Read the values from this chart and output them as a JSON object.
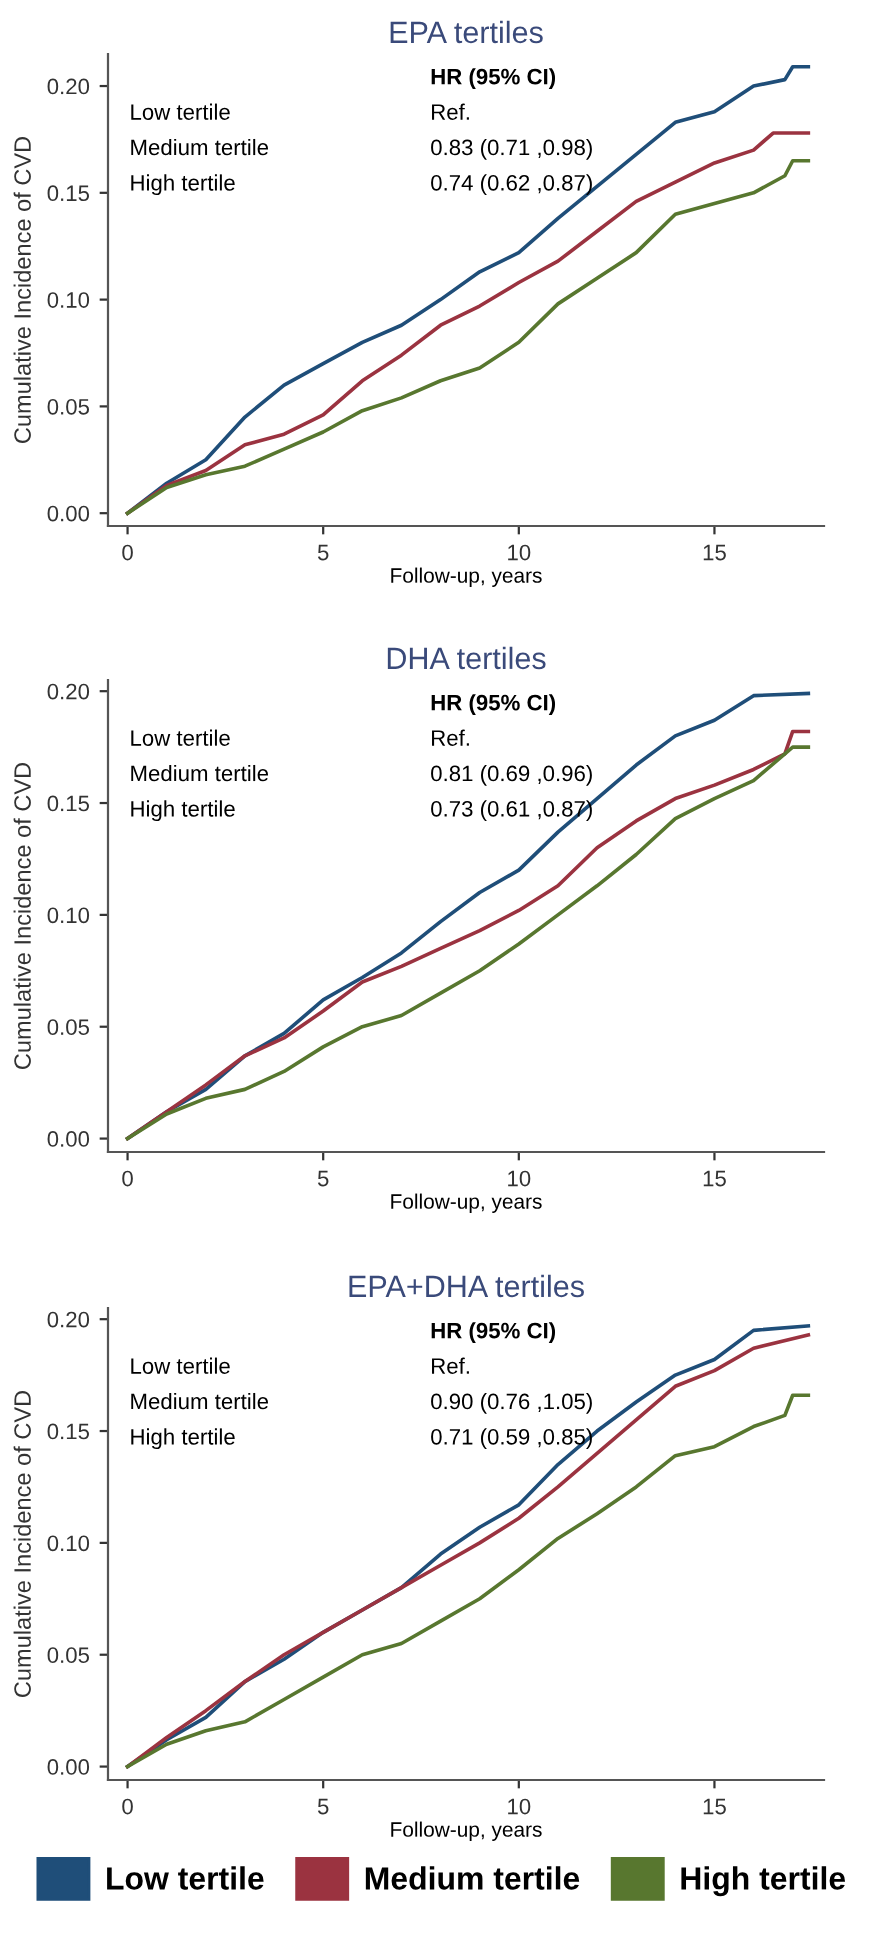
{
  "chart_data": [
    {
      "type": "line",
      "title": "EPA tertiles",
      "xlabel": "Follow-up, years",
      "ylabel": "Cumulative Incidence of CVD",
      "xlim": [
        -0.5,
        17.8
      ],
      "ylim": [
        -0.006,
        0.215
      ],
      "xticks": [
        0,
        5,
        10,
        15
      ],
      "yticks": [
        {
          "value": 0,
          "label": "0.00"
        },
        {
          "value": 0.05,
          "label": "0.05"
        },
        {
          "value": 0.1,
          "label": "0.10"
        },
        {
          "value": 0.15,
          "label": "0.15"
        },
        {
          "value": 0.2,
          "label": "0.20"
        }
      ],
      "grid": false,
      "legend": "bottom",
      "annotations": [
        "HR (95% CI)",
        "Low tertile",
        "Ref.",
        "Medium tertile",
        "0.83 (0.71 ,0.98)",
        "High tertile",
        "0.74 (0.62 ,0.87)"
      ],
      "series": [
        {
          "name": "Low tertile",
          "color": "#1f4e79",
          "x": [
            0,
            1,
            2,
            3,
            4,
            5,
            6,
            7,
            8,
            9,
            10,
            11,
            12,
            13,
            14,
            15,
            16,
            16.8,
            17,
            17.4
          ],
          "values": [
            0,
            0.014,
            0.025,
            0.045,
            0.06,
            0.07,
            0.08,
            0.088,
            0.1,
            0.113,
            0.122,
            0.138,
            0.153,
            0.168,
            0.183,
            0.188,
            0.2,
            0.203,
            0.209,
            0.209
          ]
        },
        {
          "name": "Medium tertile",
          "color": "#9b3340",
          "x": [
            0,
            1,
            2,
            3,
            4,
            5,
            6,
            7,
            8,
            9,
            10,
            11,
            12,
            13,
            14,
            15,
            16,
            16.5,
            17.4
          ],
          "values": [
            0,
            0.013,
            0.02,
            0.032,
            0.037,
            0.046,
            0.062,
            0.074,
            0.088,
            0.097,
            0.108,
            0.118,
            0.132,
            0.146,
            0.155,
            0.164,
            0.17,
            0.178,
            0.178
          ]
        },
        {
          "name": "High tertile",
          "color": "#58772f",
          "x": [
            0,
            1,
            2,
            3,
            4,
            5,
            6,
            7,
            8,
            9,
            10,
            11,
            12,
            13,
            14,
            15,
            16,
            16.8,
            17,
            17.4
          ],
          "values": [
            0,
            0.012,
            0.018,
            0.022,
            0.03,
            0.038,
            0.048,
            0.054,
            0.062,
            0.068,
            0.08,
            0.098,
            0.11,
            0.122,
            0.14,
            0.145,
            0.15,
            0.158,
            0.165,
            0.165
          ]
        }
      ]
    },
    {
      "type": "line",
      "title": "DHA tertiles",
      "xlabel": "Follow-up, years",
      "ylabel": "Cumulative Incidence of CVD",
      "xlim": [
        -0.5,
        17.8
      ],
      "ylim": [
        -0.006,
        0.205
      ],
      "xticks": [
        0,
        5,
        10,
        15
      ],
      "yticks": [
        {
          "value": 0,
          "label": "0.00"
        },
        {
          "value": 0.05,
          "label": "0.05"
        },
        {
          "value": 0.1,
          "label": "0.10"
        },
        {
          "value": 0.15,
          "label": "0.15"
        },
        {
          "value": 0.2,
          "label": "0.20"
        }
      ],
      "grid": false,
      "annotations": [
        "HR (95% CI)",
        "Low tertile",
        "Ref.",
        "Medium tertile",
        "0.81 (0.69 ,0.96)",
        "High tertile",
        "0.73 (0.61 ,0.87)"
      ],
      "series": [
        {
          "color": "#1f4e79",
          "x": [
            0,
            1,
            2,
            3,
            4,
            5,
            6,
            7,
            8,
            9,
            10,
            11,
            12,
            13,
            14,
            15,
            16,
            17.4
          ],
          "values": [
            0,
            0.012,
            0.022,
            0.037,
            0.047,
            0.062,
            0.072,
            0.083,
            0.097,
            0.11,
            0.12,
            0.137,
            0.152,
            0.167,
            0.18,
            0.187,
            0.198,
            0.199
          ]
        },
        {
          "color": "#9b3340",
          "x": [
            0,
            1,
            2,
            3,
            4,
            5,
            6,
            7,
            8,
            9,
            10,
            11,
            12,
            13,
            14,
            15,
            16,
            16.8,
            17,
            17.4
          ],
          "values": [
            0,
            0.012,
            0.024,
            0.037,
            0.045,
            0.057,
            0.07,
            0.077,
            0.085,
            0.093,
            0.102,
            0.113,
            0.13,
            0.142,
            0.152,
            0.158,
            0.165,
            0.172,
            0.182,
            0.182
          ]
        },
        {
          "color": "#58772f",
          "x": [
            0,
            1,
            2,
            3,
            4,
            5,
            6,
            7,
            8,
            9,
            10,
            11,
            12,
            13,
            14,
            15,
            16,
            17,
            17.4
          ],
          "values": [
            0,
            0.011,
            0.018,
            0.022,
            0.03,
            0.041,
            0.05,
            0.055,
            0.065,
            0.075,
            0.087,
            0.1,
            0.113,
            0.127,
            0.143,
            0.152,
            0.16,
            0.175,
            0.175
          ]
        }
      ]
    },
    {
      "type": "line",
      "title": "EPA+DHA tertiles",
      "xlabel": "Follow-up, years",
      "ylabel": "Cumulative Incidence of CVD",
      "xlim": [
        -0.5,
        17.8
      ],
      "ylim": [
        -0.006,
        0.205
      ],
      "xticks": [
        0,
        5,
        10,
        15
      ],
      "yticks": [
        {
          "value": 0,
          "label": "0.00"
        },
        {
          "value": 0.05,
          "label": "0.05"
        },
        {
          "value": 0.1,
          "label": "0.10"
        },
        {
          "value": 0.15,
          "label": "0.15"
        },
        {
          "value": 0.2,
          "label": "0.20"
        }
      ],
      "grid": false,
      "annotations": [
        "HR (95% CI)",
        "Low tertile",
        "Ref.",
        "Medium tertile",
        "0.90 (0.76 ,1.05)",
        "High tertile",
        "0.71 (0.59 ,0.85)"
      ],
      "series": [
        {
          "color": "#1f4e79",
          "x": [
            0,
            1,
            2,
            3,
            4,
            5,
            6,
            7,
            8,
            9,
            10,
            11,
            12,
            13,
            14,
            15,
            16,
            17.4
          ],
          "values": [
            0,
            0.012,
            0.022,
            0.038,
            0.048,
            0.06,
            0.07,
            0.08,
            0.095,
            0.107,
            0.117,
            0.135,
            0.15,
            0.163,
            0.175,
            0.182,
            0.195,
            0.197
          ]
        },
        {
          "color": "#9b3340",
          "x": [
            0,
            1,
            2,
            3,
            4,
            5,
            6,
            7,
            8,
            9,
            10,
            11,
            12,
            13,
            14,
            15,
            16,
            17.4
          ],
          "values": [
            0,
            0.013,
            0.025,
            0.038,
            0.05,
            0.06,
            0.07,
            0.08,
            0.09,
            0.1,
            0.111,
            0.125,
            0.14,
            0.155,
            0.17,
            0.177,
            0.187,
            0.193
          ]
        },
        {
          "color": "#58772f",
          "x": [
            0,
            1,
            2,
            3,
            4,
            5,
            6,
            7,
            8,
            9,
            10,
            11,
            12,
            13,
            14,
            15,
            16,
            16.8,
            17,
            17.4
          ],
          "values": [
            0,
            0.01,
            0.016,
            0.02,
            0.03,
            0.04,
            0.05,
            0.055,
            0.065,
            0.075,
            0.088,
            0.102,
            0.113,
            0.125,
            0.139,
            0.143,
            0.152,
            0.157,
            0.166,
            0.166
          ]
        }
      ]
    }
  ]
}
